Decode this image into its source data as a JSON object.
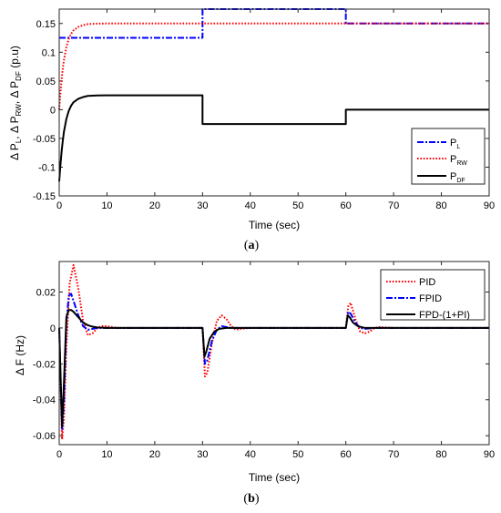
{
  "chart_data": [
    {
      "type": "line",
      "caption": "(a)",
      "xlabel": "Time (sec)",
      "ylabel": {
        "parts": [
          "Δ P",
          "L",
          ", Δ P",
          "RW",
          ", Δ P",
          "DF",
          " (p.u)"
        ]
      },
      "xlim": [
        0,
        90
      ],
      "ylim": [
        -0.15,
        0.175
      ],
      "xticks": [
        0,
        10,
        20,
        30,
        40,
        50,
        60,
        70,
        80,
        90
      ],
      "yticks": [
        -0.15,
        -0.1,
        -0.05,
        0,
        0.05,
        0.1,
        0.15
      ],
      "ytick_labels": [
        "-0.15",
        "-0.1",
        "-0.05",
        "0",
        "0.05",
        "0.1",
        "0.15"
      ],
      "legend_position": "lower-right",
      "series": [
        {
          "name": "P",
          "sub": "L",
          "color": "#0000ff",
          "dash": "7,2,2,2",
          "x": [
            0,
            30,
            30,
            60,
            60,
            90
          ],
          "y": [
            0.125,
            0.125,
            0.175,
            0.175,
            0.15,
            0.15
          ]
        },
        {
          "name": "P",
          "sub": "RW",
          "color": "#ff0000",
          "dash": "1.6,1.8",
          "x": [
            0,
            0.25,
            0.5,
            0.75,
            1,
            1.5,
            2,
            2.5,
            3,
            4,
            5,
            6,
            8,
            10,
            12,
            90
          ],
          "y": [
            0,
            0.028,
            0.052,
            0.071,
            0.087,
            0.109,
            0.123,
            0.132,
            0.138,
            0.144,
            0.147,
            0.149,
            0.1497,
            0.15,
            0.15,
            0.15
          ]
        },
        {
          "name": "P",
          "sub": "DF",
          "color": "#000000",
          "dash": "",
          "x": [
            0,
            0.25,
            0.5,
            0.75,
            1,
            1.5,
            2,
            2.5,
            3,
            4,
            5,
            6,
            8,
            10,
            12,
            30,
            30,
            60,
            60,
            90
          ],
          "y": [
            -0.125,
            -0.097,
            -0.073,
            -0.054,
            -0.038,
            -0.016,
            -0.002,
            0.007,
            0.013,
            0.019,
            0.022,
            0.024,
            0.0248,
            0.025,
            0.025,
            0.025,
            -0.025,
            -0.025,
            0,
            0
          ]
        }
      ]
    },
    {
      "type": "line",
      "caption": "(b)",
      "xlabel": "Time (sec)",
      "ylabel": {
        "parts": [
          "Δ F (Hz)"
        ]
      },
      "xlim": [
        0,
        90
      ],
      "ylim": [
        -0.065,
        0.037
      ],
      "xticks": [
        0,
        10,
        20,
        30,
        40,
        50,
        60,
        70,
        80,
        90
      ],
      "yticks": [
        -0.06,
        -0.04,
        -0.02,
        0,
        0.02
      ],
      "ytick_labels": [
        "-0.06",
        "-0.04",
        "-0.02",
        "0",
        "0.02"
      ],
      "legend_position": "top-right",
      "series": [
        {
          "name": "PID",
          "sub": "",
          "color": "#ff0000",
          "dash": "1.6,1.8",
          "x": [
            0,
            0.3,
            0.6,
            1.0,
            1.5,
            2.2,
            3.0,
            4.0,
            5.0,
            6.0,
            7.0,
            8.0,
            9.0,
            10.0,
            12.0,
            30.0,
            30.5,
            31.0,
            32.0,
            33.0,
            34.0,
            35.0,
            36.0,
            37.0,
            38.0,
            40.0,
            60.0,
            60.5,
            61.0,
            62.0,
            63.0,
            64.0,
            65.0,
            66.0,
            67.0,
            70.0,
            90.0
          ],
          "y": [
            0,
            -0.035,
            -0.062,
            -0.05,
            -0.01,
            0.025,
            0.035,
            0.022,
            0.004,
            -0.004,
            -0.003,
            0,
            0.001,
            0.001,
            0,
            0,
            -0.027,
            -0.025,
            -0.008,
            0.004,
            0.007,
            0.005,
            0.001,
            -0.001,
            -0.0005,
            0,
            0,
            0.012,
            0.014,
            0.005,
            -0.002,
            -0.003,
            -0.002,
            0,
            0.0005,
            0,
            0
          ]
        },
        {
          "name": "FPID",
          "sub": "",
          "color": "#0000ff",
          "dash": "7,2,2,2",
          "x": [
            0,
            0.3,
            0.6,
            1.0,
            1.5,
            2.0,
            2.5,
            3.0,
            4.0,
            5.0,
            6.0,
            7.0,
            8.0,
            10.0,
            30.0,
            30.5,
            31.0,
            32.0,
            33.0,
            34.0,
            36.0,
            60.0,
            60.5,
            61.0,
            62.0,
            63.0,
            64.0,
            66.0,
            90.0
          ],
          "y": [
            0,
            -0.03,
            -0.057,
            -0.04,
            0.003,
            0.018,
            0.019,
            0.015,
            0.007,
            0.001,
            -0.001,
            -0.0005,
            0,
            0,
            0,
            -0.02,
            -0.018,
            -0.007,
            -0.001,
            0.001,
            0,
            0,
            0.009,
            0.008,
            0.003,
            0,
            -0.0005,
            0,
            0
          ]
        },
        {
          "name": "FPD-(1+PI)",
          "sub": "",
          "color": "#000000",
          "dash": "",
          "x": [
            0,
            0.3,
            0.6,
            1.0,
            1.5,
            2.0,
            2.5,
            3.0,
            4.0,
            5.0,
            6.0,
            7.0,
            8.0,
            10.0,
            30.0,
            30.4,
            30.8,
            31.5,
            32.5,
            33.5,
            35.0,
            60.0,
            60.4,
            60.8,
            61.5,
            62.5,
            64.0,
            90.0
          ],
          "y": [
            0,
            -0.028,
            -0.055,
            -0.03,
            0.006,
            0.01,
            0.01,
            0.009,
            0.006,
            0.003,
            0.0015,
            0.0007,
            0.0003,
            0,
            0,
            -0.016,
            -0.013,
            -0.006,
            -0.002,
            -0.0005,
            0,
            0,
            0.007,
            0.006,
            0.003,
            0.001,
            0,
            0
          ]
        }
      ]
    }
  ]
}
